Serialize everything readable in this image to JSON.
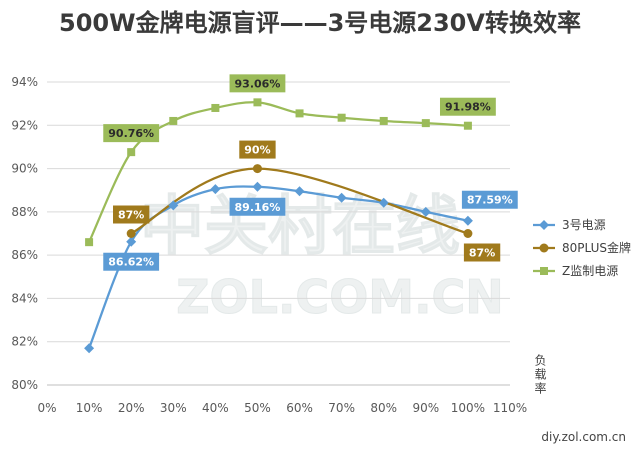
{
  "chart_data": {
    "type": "line",
    "smoothed": true,
    "title": "500W金牌电源盲评——3号电源230V转换效率",
    "xlabel": "负载率",
    "xlim": [
      0,
      110
    ],
    "ylim": [
      80,
      94
    ],
    "x_ticks": [
      0,
      10,
      20,
      30,
      40,
      50,
      60,
      70,
      80,
      90,
      100,
      110
    ],
    "x_tick_labels": [
      "0%",
      "10%",
      "20%",
      "30%",
      "40%",
      "50%",
      "60%",
      "70%",
      "80%",
      "90%",
      "100%",
      "110%"
    ],
    "y_ticks": [
      80,
      82,
      84,
      86,
      88,
      90,
      92,
      94
    ],
    "y_tick_labels": [
      "80%",
      "82%",
      "84%",
      "86%",
      "88%",
      "90%",
      "92%",
      "94%"
    ],
    "grid": "horizontal",
    "legend": "right",
    "series": [
      {
        "name": "3号电源",
        "color": "#5b9bd5",
        "label_text_color": "#ffffff",
        "marker": "diamond",
        "x": [
          10,
          20,
          30,
          40,
          50,
          60,
          70,
          80,
          90,
          100
        ],
        "y": [
          81.7,
          86.62,
          88.3,
          89.05,
          89.16,
          88.95,
          88.65,
          88.42,
          88.0,
          87.59
        ],
        "data_labels": [
          {
            "x": 20,
            "text": "86.62%",
            "position": "below"
          },
          {
            "x": 50,
            "text": "89.16%",
            "position": "below"
          },
          {
            "x": 100,
            "text": "87.59%",
            "position": "above-right"
          }
        ]
      },
      {
        "name": "80PLUS金牌",
        "color": "#a07a1c",
        "label_text_color": "#ffffff",
        "marker": "circle",
        "x": [
          20,
          50,
          100
        ],
        "y": [
          87,
          90,
          87
        ],
        "data_labels": [
          {
            "x": 20,
            "text": "87%",
            "position": "above"
          },
          {
            "x": 50,
            "text": "90%",
            "position": "above"
          },
          {
            "x": 100,
            "text": "87%",
            "position": "below-right"
          }
        ]
      },
      {
        "name": "Z监制电源",
        "color": "#9bbb59",
        "label_text_color": "#2b2b2b",
        "marker": "square",
        "x": [
          10,
          20,
          30,
          40,
          50,
          60,
          70,
          80,
          90,
          100
        ],
        "y": [
          86.6,
          90.76,
          92.2,
          92.8,
          93.06,
          92.55,
          92.35,
          92.2,
          92.1,
          91.98
        ],
        "data_labels": [
          {
            "x": 20,
            "text": "90.76%",
            "position": "above"
          },
          {
            "x": 50,
            "text": "93.06%",
            "position": "above"
          },
          {
            "x": 100,
            "text": "91.98%",
            "position": "above"
          }
        ]
      }
    ]
  },
  "watermark": {
    "line1": "中关村在线",
    "line2": "ZOL.COM.CN"
  },
  "footer": {
    "source": "diy.zol.com.cn"
  }
}
